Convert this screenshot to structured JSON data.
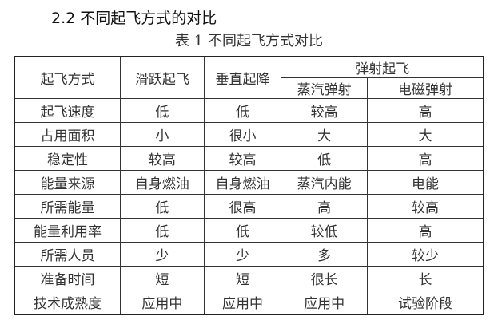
{
  "section_heading": "2.2 不同起飞方式的对比",
  "table_caption": "表 1   不同起飞方式对比",
  "table": {
    "header": {
      "row_label": "起飞方式",
      "ski_jump": "滑跃起飞",
      "vertical": "垂直起降",
      "catapult": "弹射起飞",
      "steam": "蒸汽弹射",
      "electromagnetic": "电磁弹射"
    },
    "rows": [
      [
        "起飞速度",
        "低",
        "低",
        "较高",
        "高"
      ],
      [
        "占用面积",
        "小",
        "很小",
        "大",
        "大"
      ],
      [
        "稳定性",
        "较高",
        "较高",
        "低",
        "高"
      ],
      [
        "能量来源",
        "自身燃油",
        "自身燃油",
        "蒸汽内能",
        "电能"
      ],
      [
        "所需能量",
        "低",
        "很高",
        "高",
        "较高"
      ],
      [
        "能量利用率",
        "低",
        "低",
        "较低",
        "高"
      ],
      [
        "所需人员",
        "少",
        "少",
        "多",
        "较少"
      ],
      [
        "准备时间",
        "短",
        "短",
        "很长",
        "长"
      ],
      [
        "技术成熟度",
        "应用中",
        "应用中",
        "应用中",
        "试验阶段"
      ]
    ]
  }
}
